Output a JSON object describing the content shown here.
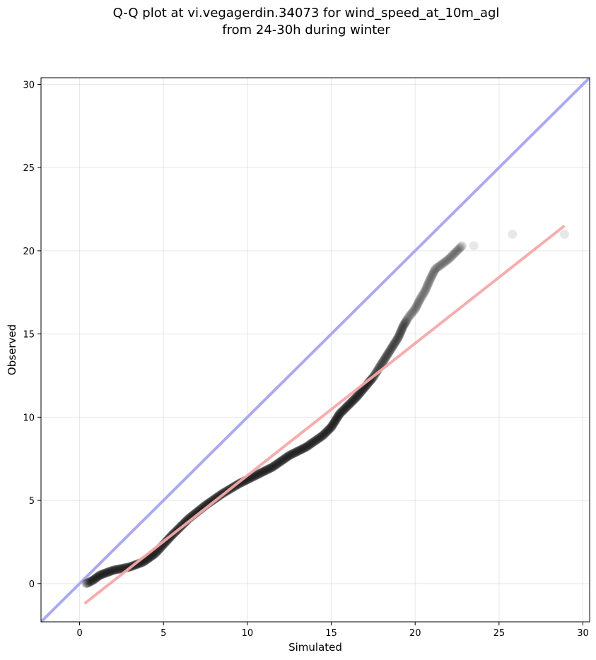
{
  "chart_data": {
    "type": "scatter",
    "title_line1": "Q-Q plot at vi.vegagerdin.34073 for wind_speed_at_10m_agl",
    "title_line2": "from 24-30h during winter",
    "xlabel": "Simulated",
    "ylabel": "Observed",
    "xlim": [
      -2.3,
      30.4
    ],
    "ylim": [
      -2.3,
      30.4
    ],
    "x_ticks": [
      0,
      5,
      10,
      15,
      20,
      25,
      30
    ],
    "y_ticks": [
      0,
      5,
      10,
      15,
      20,
      25,
      30
    ],
    "x_tick_labels": [
      "0",
      "5",
      "10",
      "15",
      "20",
      "25",
      "30"
    ],
    "y_tick_labels": [
      "0",
      "5",
      "10",
      "15",
      "20",
      "25",
      "30"
    ],
    "grid": true,
    "colors": {
      "points": "#000000",
      "identity_line": "#aaaaf2",
      "fit_line": "#f5a9a9"
    },
    "identity_line": {
      "x": [
        -2.3,
        30.4
      ],
      "y": [
        -2.3,
        30.4
      ]
    },
    "fit_line": {
      "x": [
        0.3,
        28.9
      ],
      "y": [
        -1.2,
        21.5
      ]
    },
    "quantile_curve": {
      "x": [
        0.4,
        0.8,
        1.2,
        2.0,
        3.0,
        3.8,
        4.5,
        5.5,
        6.5,
        7.5,
        8.5,
        9.5,
        10.5,
        11.5,
        12.5,
        13.5,
        14.5,
        15.0,
        15.5,
        16.0,
        16.5,
        17.0,
        17.5,
        18.0,
        18.5,
        19.0,
        19.3,
        19.6,
        20.0,
        20.3,
        20.6,
        20.9,
        21.2,
        21.6,
        22.0,
        22.4,
        22.8
      ],
      "y": [
        0.0,
        0.2,
        0.5,
        0.8,
        1.0,
        1.3,
        1.8,
        2.9,
        3.9,
        4.7,
        5.4,
        6.0,
        6.5,
        7.0,
        7.7,
        8.2,
        8.9,
        9.4,
        10.2,
        10.7,
        11.2,
        11.8,
        12.4,
        13.2,
        14.0,
        14.8,
        15.5,
        16.0,
        16.5,
        17.1,
        17.6,
        18.3,
        18.9,
        19.2,
        19.5,
        19.9,
        20.3
      ]
    },
    "outliers": {
      "x": [
        23.5,
        25.8,
        28.9
      ],
      "y": [
        20.3,
        21.0,
        21.0
      ]
    }
  }
}
